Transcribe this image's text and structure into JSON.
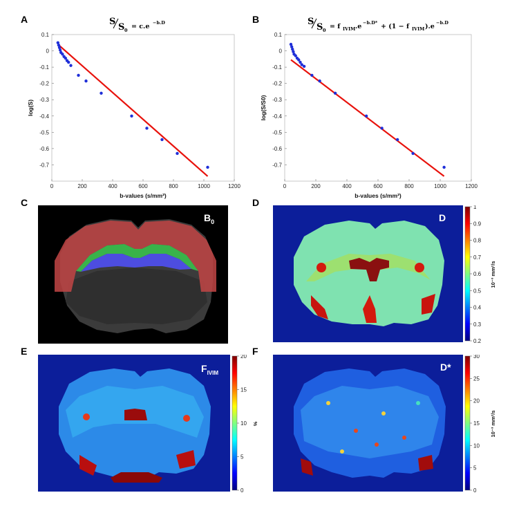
{
  "panels": {
    "a": {
      "label": "A"
    },
    "b": {
      "label": "B"
    },
    "c": {
      "label": "C",
      "overlay": "B",
      "overlay_sub": "0"
    },
    "d": {
      "label": "D",
      "overlay": "D",
      "cb_ticks": [
        "1",
        "0.9",
        "0.8",
        "0.7",
        "0.6",
        "0.5",
        "0.4",
        "0.3",
        "0.2"
      ],
      "cb_unit": "10⁻³ mm²/s"
    },
    "e": {
      "label": "E",
      "overlay": "F",
      "overlay_sub": "IVIM",
      "cb_ticks": [
        "20",
        "15",
        "10",
        "5",
        "0"
      ],
      "cb_unit": "%"
    },
    "f": {
      "label": "F",
      "overlay": "D*",
      "cb_ticks": [
        "30",
        "25",
        "20",
        "15",
        "10",
        "5",
        "0"
      ],
      "cb_unit": "10⁻³ mm²/s"
    }
  },
  "formulas": {
    "a": {
      "S": "S",
      "S0": "S",
      "sub0": "0",
      "rhs": "= c.e",
      "exp": "−b.D"
    },
    "b": {
      "S": "S",
      "S0": "S",
      "sub0": "0",
      "rhs1": "= f",
      "f_sub": "IVIM",
      "mid": ".e",
      "exp1": "−b.D*",
      "plus": "+ (1 − f",
      "f_sub2": "IVIM",
      "end": ").e",
      "exp2": "−b.D"
    }
  },
  "chart_data": [
    {
      "type": "scatter",
      "title": "",
      "xlabel": "b-values (s/mm²)",
      "ylabel": "log(S)",
      "xlim": [
        0,
        1200
      ],
      "ylim": [
        -0.8,
        0.1
      ],
      "xticks": [
        "0",
        "200",
        "400",
        "600",
        "800",
        "1000",
        "1200"
      ],
      "yticks": [
        "0.1",
        "0",
        "-0.1",
        "-0.2",
        "-0.3",
        "-0.4",
        "-0.5",
        "-0.6",
        "-0.7"
      ],
      "series": [
        {
          "kind": "points",
          "color": "#1f2fd8",
          "x": [
            40,
            45,
            50,
            55,
            60,
            70,
            80,
            90,
            100,
            110,
            125,
            175,
            225,
            325,
            525,
            625,
            725,
            825,
            1025
          ],
          "y": [
            0.05,
            0.035,
            0.02,
            0.005,
            -0.01,
            -0.02,
            -0.035,
            -0.045,
            -0.06,
            -0.07,
            -0.09,
            -0.15,
            -0.185,
            -0.26,
            -0.4,
            -0.475,
            -0.545,
            -0.63,
            -0.715
          ]
        },
        {
          "kind": "line",
          "color": "#e8120c",
          "x": [
            40,
            1025
          ],
          "y": [
            0.04,
            -0.77
          ]
        }
      ]
    },
    {
      "type": "scatter",
      "title": "",
      "xlabel": "b-values (s/mm²)",
      "ylabel": "log(S/S0)",
      "xlim": [
        0,
        1200
      ],
      "ylim": [
        -0.8,
        0.1
      ],
      "xticks": [
        "0",
        "200",
        "400",
        "600",
        "800",
        "1000",
        "1200"
      ],
      "yticks": [
        "0.1",
        "0",
        "-0.1",
        "-0.2",
        "-0.3",
        "-0.4",
        "-0.5",
        "-0.6",
        "-0.7"
      ],
      "series": [
        {
          "kind": "points",
          "color": "#1f2fd8",
          "x": [
            40,
            45,
            50,
            55,
            60,
            70,
            80,
            90,
            100,
            110,
            125,
            175,
            225,
            325,
            525,
            625,
            725,
            825,
            1025
          ],
          "y": [
            0.04,
            0.025,
            0.01,
            -0.005,
            -0.02,
            -0.03,
            -0.045,
            -0.055,
            -0.07,
            -0.085,
            -0.095,
            -0.15,
            -0.185,
            -0.26,
            -0.4,
            -0.475,
            -0.545,
            -0.63,
            -0.715
          ]
        },
        {
          "kind": "line",
          "color": "#e8120c",
          "x": [
            40,
            1025
          ],
          "y": [
            -0.055,
            -0.77
          ]
        }
      ]
    }
  ]
}
